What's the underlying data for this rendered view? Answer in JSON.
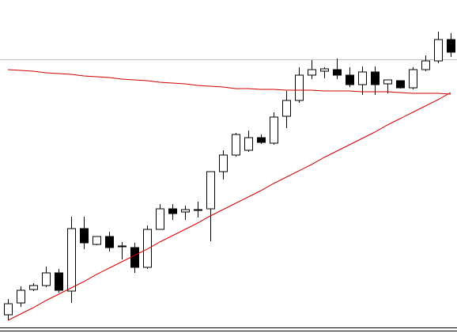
{
  "chart_data": {
    "type": "candlestick",
    "open": [
      23,
      38,
      55,
      60,
      76,
      53,
      132,
      112,
      122,
      110,
      108,
      83,
      131,
      157,
      153,
      156,
      157,
      204,
      225,
      231,
      247,
      240,
      274,
      294,
      326,
      331,
      333,
      326,
      314,
      330,
      315,
      319,
      310,
      333,
      344,
      371
    ],
    "high": [
      43,
      59,
      63,
      84,
      81,
      147,
      147,
      122,
      128,
      115,
      114,
      136,
      163,
      163,
      161,
      166,
      204,
      231,
      253,
      256,
      251,
      279,
      306,
      336,
      345,
      336,
      347,
      336,
      337,
      337,
      320,
      319,
      336,
      351,
      381,
      379
    ],
    "low": [
      16,
      33,
      53,
      58,
      51,
      38,
      106,
      111,
      103,
      93,
      76,
      81,
      131,
      143,
      143,
      146,
      116,
      194,
      223,
      229,
      239,
      238,
      259,
      291,
      321,
      322,
      321,
      311,
      301,
      301,
      303,
      309,
      308,
      331,
      341,
      349
    ],
    "close": [
      37,
      54,
      60,
      76,
      54,
      132,
      114,
      122,
      108,
      109,
      83,
      131,
      157,
      151,
      156,
      156,
      204,
      225,
      251,
      247,
      241,
      273,
      294,
      326,
      333,
      334,
      326,
      314,
      330,
      314,
      320,
      310,
      333,
      344,
      371,
      355
    ],
    "up_color": "#ffffff",
    "down_color": "#000000",
    "ylim": [
      9,
      421
    ],
    "series": [
      {
        "color": "#d00000",
        "values": [
          333,
          332,
          331,
          329,
          328,
          327,
          325,
          324,
          323,
          321,
          320,
          319,
          317,
          316,
          315,
          313,
          312,
          311,
          309,
          309,
          308,
          308,
          307,
          307,
          307,
          306,
          306,
          306,
          305,
          305,
          305,
          304,
          303,
          303,
          303,
          302
        ]
      },
      {
        "color": "#d00000",
        "values": [
          16,
          24,
          32,
          41,
          49,
          57,
          65,
          74,
          82,
          90,
          98,
          106,
          115,
          123,
          131,
          139,
          148,
          156,
          164,
          172,
          180,
          189,
          197,
          205,
          213,
          222,
          230,
          238,
          246,
          254,
          263,
          271,
          279,
          287,
          295,
          304
        ]
      }
    ],
    "reference_line": {
      "value": 346,
      "color": "#c0c0c0"
    }
  }
}
